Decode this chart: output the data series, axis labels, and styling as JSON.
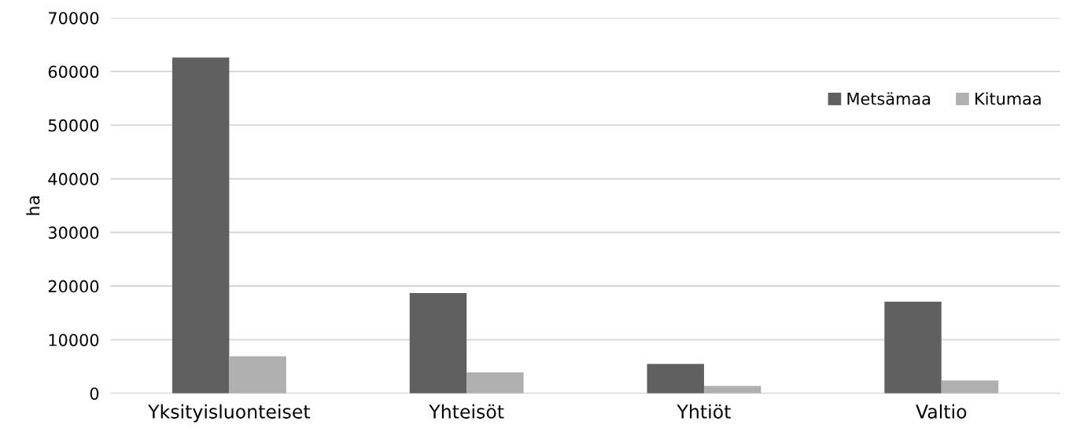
{
  "chart_data": {
    "type": "bar",
    "ylabel": "ha",
    "categories": [
      "Yksityisluonteiset",
      "Yhteisöt",
      "Yhtiöt",
      "Valtio"
    ],
    "series": [
      {
        "name": "Metsämaa",
        "color": "#606060",
        "values": [
          62600,
          18700,
          5500,
          17100
        ]
      },
      {
        "name": "Kitumaa",
        "color": "#b0b0b0",
        "values": [
          6900,
          3900,
          1400,
          2400
        ]
      }
    ],
    "ylim": [
      0,
      70000
    ],
    "yticks": [
      0,
      10000,
      20000,
      30000,
      40000,
      50000,
      60000,
      70000
    ],
    "grid": "y",
    "legend": "top right"
  }
}
